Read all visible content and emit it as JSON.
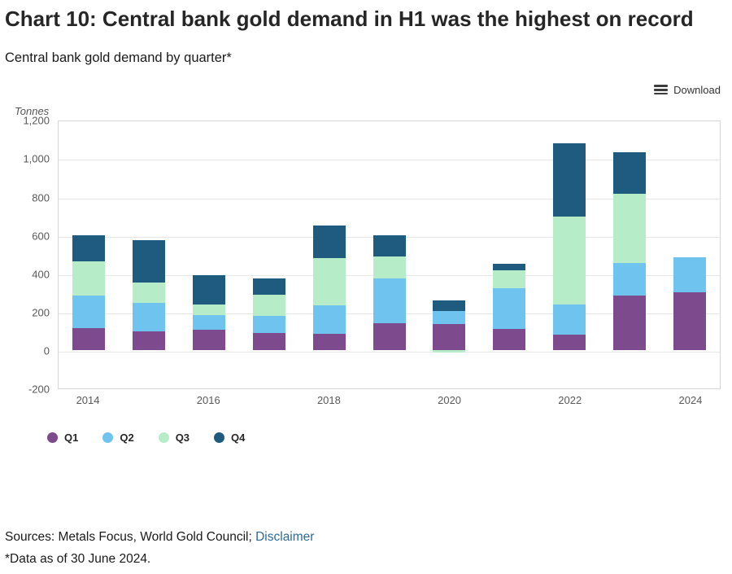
{
  "header": {
    "title": "Chart 10: Central bank gold demand in H1 was the highest on record",
    "subtitle": "Central bank gold demand by quarter*"
  },
  "toolbar": {
    "download_label": "Download"
  },
  "chart_data": {
    "type": "bar",
    "stacked": true,
    "title": "Central bank gold demand by quarter*",
    "xlabel": "",
    "ylabel": "Tonnes",
    "ylim": [
      -200,
      1200
    ],
    "ytick_step": 200,
    "grid": true,
    "legend_position": "bottom",
    "categories": [
      2014,
      2015,
      2016,
      2017,
      2018,
      2019,
      2020,
      2021,
      2022,
      2023,
      2024
    ],
    "x_tick_labels": [
      "2014",
      "2016",
      "2018",
      "2020",
      "2022",
      "2024"
    ],
    "series": [
      {
        "name": "Q1",
        "color": "#7d4a8d",
        "values": [
          115,
          100,
          105,
          90,
          85,
          140,
          135,
          110,
          80,
          285,
          300
        ]
      },
      {
        "name": "Q2",
        "color": "#6ec4ef",
        "values": [
          170,
          145,
          80,
          90,
          150,
          235,
          70,
          215,
          160,
          170,
          185
        ]
      },
      {
        "name": "Q3",
        "color": "#b6edc8",
        "values": [
          180,
          110,
          55,
          110,
          245,
          115,
          -10,
          90,
          455,
          360,
          0
        ]
      },
      {
        "name": "Q4",
        "color": "#1f5b7e",
        "values": [
          135,
          220,
          150,
          85,
          170,
          110,
          55,
          35,
          385,
          215,
          0
        ]
      }
    ]
  },
  "footer": {
    "sources_prefix": "Sources: Metals Focus, World Gold Council; ",
    "disclaimer_label": "Disclaimer",
    "footnote": "*Data as of 30 June 2024."
  }
}
